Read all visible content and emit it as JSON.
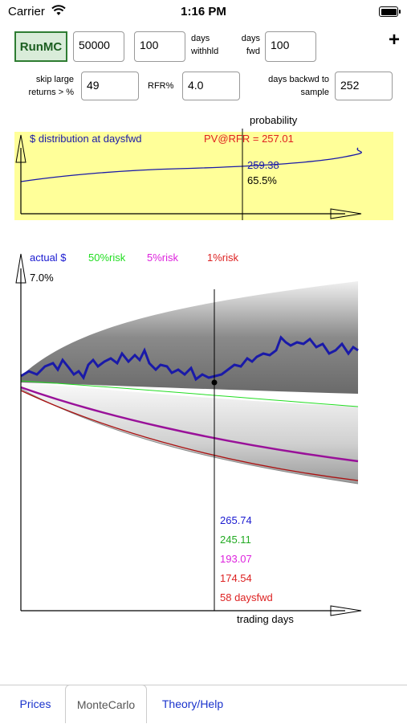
{
  "status_bar": {
    "carrier": "Carrier",
    "time": "1:16 PM"
  },
  "controls": {
    "run_button": "RunMC",
    "runs_value": "50000",
    "days_withheld_value": "100",
    "days_withheld_label_1": "days",
    "days_withheld_label_2": "withhld",
    "days_fwd_label_1": "days",
    "days_fwd_label_2": "fwd",
    "days_fwd_value": "100",
    "skip_label_1": "skip large",
    "skip_label_2": "returns > %",
    "skip_value": "49",
    "rfr_label": "RFR%",
    "rfr_value": "4.0",
    "backwd_label_1": "days backwd to",
    "backwd_label_2": "sample",
    "backwd_value": "252",
    "add_label": "+"
  },
  "distribution_panel": {
    "title": "$ distribution at daysfwd",
    "pv": "PV@RFR = 257.01",
    "probability_label": "probability",
    "value_at_cursor": "259.38",
    "pct_at_cursor": "65.5%",
    "colors": {
      "background": "#ffff99",
      "curve": "#1a1aa8",
      "pv": "#e02020"
    }
  },
  "main_chart": {
    "legend": [
      {
        "label": "actual $",
        "color": "#1a1ad0"
      },
      {
        "label": "50%risk",
        "color": "#22dd22"
      },
      {
        "label": "5%risk",
        "color": "#dd22dd"
      },
      {
        "label": "1%risk",
        "color": "#dd2222"
      }
    ],
    "y_label": "7.0%",
    "x_label": "trading days",
    "readout": [
      {
        "text": "265.74",
        "color": "#1a1ad0"
      },
      {
        "text": "245.11",
        "color": "#22aa22"
      },
      {
        "text": "193.07",
        "color": "#dd22dd"
      },
      {
        "text": "174.54",
        "color": "#dd2222"
      },
      {
        "text": "58 daysfwd",
        "color": "#dd2222"
      }
    ]
  },
  "tabs": [
    {
      "label": "Prices"
    },
    {
      "label": "MonteCarlo"
    },
    {
      "label": "Theory/Help"
    }
  ]
}
